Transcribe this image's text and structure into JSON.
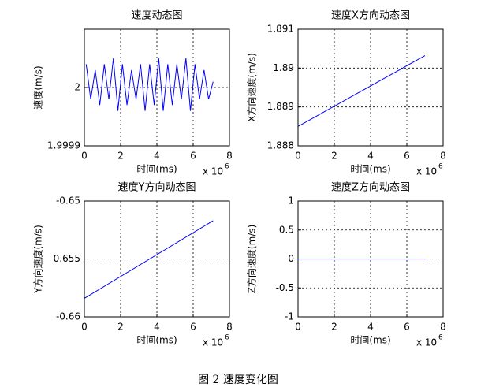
{
  "chart_data": [
    {
      "type": "line",
      "title": "速度动态图",
      "xlabel": "时间(ms)",
      "ylabel": "速度(m/s)",
      "x_multiplier": "x 10",
      "x_exponent": "6",
      "xlim": [
        0,
        8
      ],
      "xticks": [
        0,
        2,
        4,
        6,
        8
      ],
      "ylim": [
        1.9999,
        2.0001
      ],
      "yticks": [
        1.9999,
        2
      ],
      "grid": true,
      "series": [
        {
          "color": "#0000ff",
          "x": [
            0.1,
            0.35,
            0.6,
            0.85,
            1.1,
            1.35,
            1.6,
            1.85,
            2.1,
            2.35,
            2.6,
            2.85,
            3.1,
            3.35,
            3.6,
            3.85,
            4.1,
            4.35,
            4.6,
            4.85,
            5.1,
            5.35,
            5.6,
            5.85,
            6.1,
            6.35,
            6.6,
            6.85,
            7.1
          ],
          "values": [
            2.00004,
            1.99998,
            2.00003,
            1.99997,
            2.00004,
            1.99998,
            2.00005,
            1.99996,
            2.00004,
            1.99997,
            2.00003,
            1.99998,
            2.00004,
            1.99996,
            2.00004,
            1.99997,
            2.00005,
            1.99996,
            2.00004,
            1.99997,
            2.00004,
            1.99998,
            2.00005,
            1.99996,
            2.00004,
            1.99998,
            2.00003,
            1.99998,
            2.00001
          ]
        }
      ]
    },
    {
      "type": "line",
      "title": "速度X方向动态图",
      "xlabel": "时间(ms)",
      "ylabel": "X方向速度(m/s)",
      "x_multiplier": "x 10",
      "x_exponent": "6",
      "xlim": [
        0,
        8
      ],
      "xticks": [
        0,
        2,
        4,
        6,
        8
      ],
      "ylim": [
        1.888,
        1.891
      ],
      "yticks": [
        1.888,
        1.889,
        1.89,
        1.891
      ],
      "grid": true,
      "series": [
        {
          "color": "#0000ff",
          "x": [
            0,
            0.5,
            1,
            1.5,
            2,
            2.5,
            3,
            3.5,
            4,
            4.5,
            5,
            5.5,
            6,
            6.5,
            7
          ],
          "values": [
            1.8885,
            1.88863,
            1.88876,
            1.88889,
            1.88902,
            1.88915,
            1.88928,
            1.88941,
            1.88954,
            1.88967,
            1.8898,
            1.88993,
            1.89006,
            1.89019,
            1.89032
          ]
        }
      ]
    },
    {
      "type": "line",
      "title": "速度Y方向动态图",
      "xlabel": "时间(ms)",
      "ylabel": "Y方向速度(m/s)",
      "x_multiplier": "x 10",
      "x_exponent": "6",
      "xlim": [
        0,
        8
      ],
      "xticks": [
        0,
        2,
        4,
        6,
        8
      ],
      "ylim": [
        -0.66,
        -0.65
      ],
      "yticks": [
        -0.66,
        -0.655,
        -0.65
      ],
      "grid": true,
      "series": [
        {
          "color": "#0000ff",
          "x": [
            0,
            7.1
          ],
          "values": [
            -0.6584,
            -0.6517
          ]
        }
      ]
    },
    {
      "type": "line",
      "title": "速度Z方向动态图",
      "xlabel": "时间(ms)",
      "ylabel": "Z方向速度(m/s)",
      "x_multiplier": "x 10",
      "x_exponent": "6",
      "xlim": [
        0,
        8
      ],
      "xticks": [
        0,
        2,
        4,
        6,
        8
      ],
      "ylim": [
        -1,
        1
      ],
      "yticks": [
        -1,
        -0.5,
        0,
        0.5,
        1
      ],
      "grid": true,
      "series": [
        {
          "color": "#0000ff",
          "x": [
            0,
            7.1
          ],
          "values": [
            0,
            0
          ]
        }
      ]
    }
  ],
  "caption": "图 2  速度变化图"
}
